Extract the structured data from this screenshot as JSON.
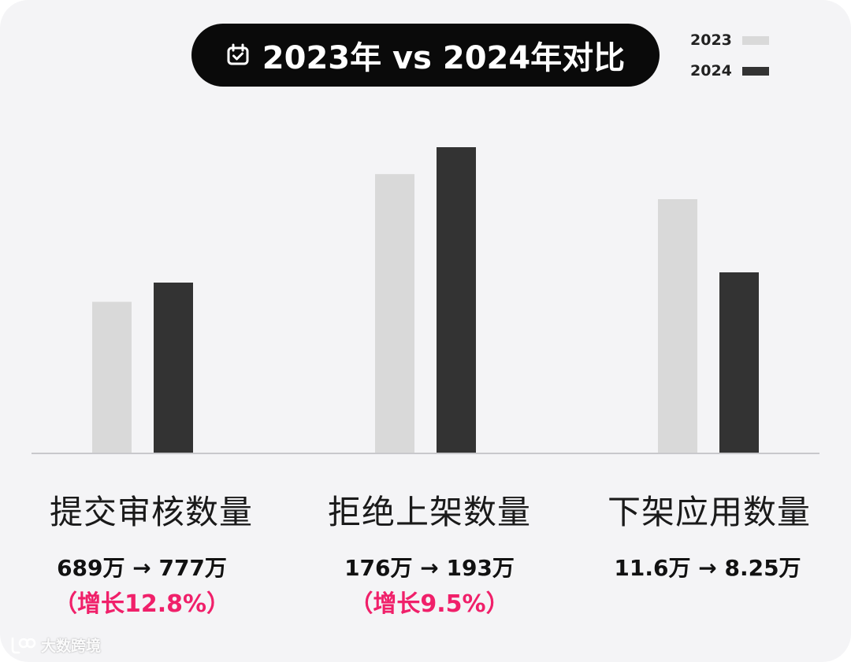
{
  "title": "2023年 vs 2024年对比",
  "title_icon": "calendar-check-icon",
  "watermark": "大数跨境",
  "colors": {
    "background": "#f4f4f6",
    "series_2023": "#d9d9d9",
    "series_2024": "#333333",
    "growth": "#f0206a"
  },
  "chart_data": {
    "type": "bar",
    "title": "2023年 vs 2024年对比",
    "legend_position": "top-right",
    "grid": false,
    "categories": [
      "提交审核数量",
      "拒绝上架数量",
      "下架应用数量"
    ],
    "series": [
      {
        "name": "2023",
        "values": [
          689,
          176,
          11.6
        ]
      },
      {
        "name": "2024",
        "values": [
          777,
          193,
          8.25
        ]
      }
    ],
    "value_labels": [
      "689万 → 777万",
      "176万 → 193万",
      "11.6万 → 8.25万"
    ],
    "growth_labels": [
      "（增长12.8%）",
      "（增长9.5%）",
      ""
    ]
  }
}
